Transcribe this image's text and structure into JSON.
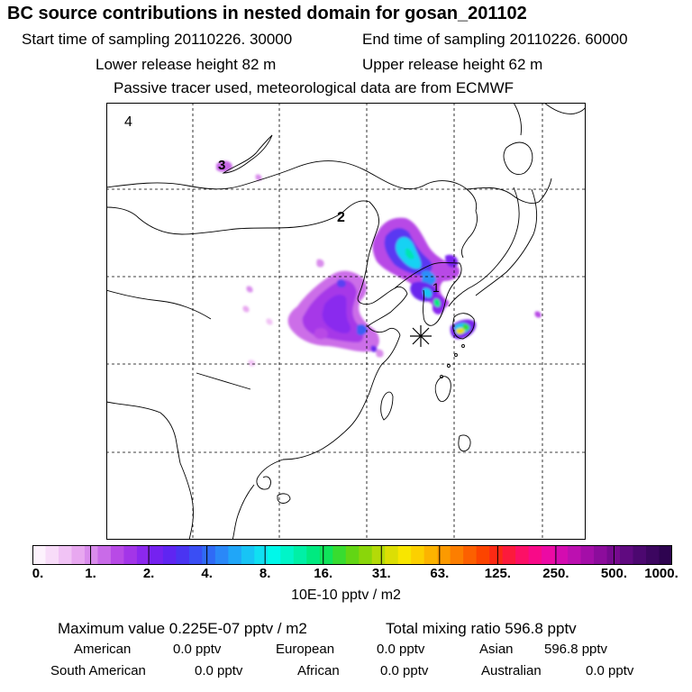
{
  "header": {
    "title": "BC  source contributions in nested domain for gosan_201102",
    "start_label": "Start time of sampling 20110226. 30000",
    "end_label": "End time of sampling 20110226. 60000",
    "lower_label": "Lower release height   82 m",
    "upper_label": "Upper release height   62 m",
    "passive_label": "Passive tracer used, meteorological data are from ECMWF"
  },
  "map": {
    "region_labels": [
      "4",
      "3",
      "2",
      "1"
    ],
    "receptor_marker": "receptor-star"
  },
  "chart_data": {
    "type": "heatmap",
    "title": "BC  source contributions in nested domain for gosan_201102",
    "colorbar": {
      "tick_labels": [
        "0.",
        "1.",
        "2.",
        "4.",
        "8.",
        "16.",
        "31.",
        "63.",
        "125.",
        "250.",
        "500.",
        "1000."
      ],
      "colors": [
        "#fdf2fd",
        "#f8dcf9",
        "#f1c3f5",
        "#e8a8f0",
        "#d98cec",
        "#c96be8",
        "#b84ae6",
        "#a335e8",
        "#8c28ee",
        "#7522f0",
        "#5f25f2",
        "#4a34f2",
        "#3a4ef4",
        "#2f6af6",
        "#2a88f8",
        "#20a6f8",
        "#18c4f5",
        "#10e0f2",
        "#00f8ea",
        "#00f5c8",
        "#00f0a6",
        "#00ea80",
        "#10e45a",
        "#38dc30",
        "#62d614",
        "#8ad60a",
        "#b4da08",
        "#dcde04",
        "#f8e600",
        "#fcd000",
        "#fcb400",
        "#fc9a00",
        "#fc7e00",
        "#fc6000",
        "#fc4400",
        "#fc2a14",
        "#fc1a3c",
        "#fc1066",
        "#f80a88",
        "#ec0aa4",
        "#d40cb0",
        "#bc10b0",
        "#a40ea8",
        "#8c0c9c",
        "#760a8e",
        "#600a80",
        "#4c0870",
        "#3c0660",
        "#2e0450"
      ],
      "units": "10E-10 pptv / m2"
    }
  },
  "summary": {
    "max_value": "Maximum value  0.225E-07 pptv / m2",
    "total_mixing": "Total mixing ratio      596.8 pptv",
    "rows": [
      [
        {
          "label": "American",
          "value": "0.0 pptv"
        },
        {
          "label": "European",
          "value": "0.0 pptv"
        },
        {
          "label": "Asian",
          "value": "596.8 pptv"
        }
      ],
      [
        {
          "label": "South American",
          "value": "0.0 pptv"
        },
        {
          "label": "African",
          "value": "0.0 pptv"
        },
        {
          "label": "Australian",
          "value": "0.0 pptv"
        }
      ]
    ]
  }
}
